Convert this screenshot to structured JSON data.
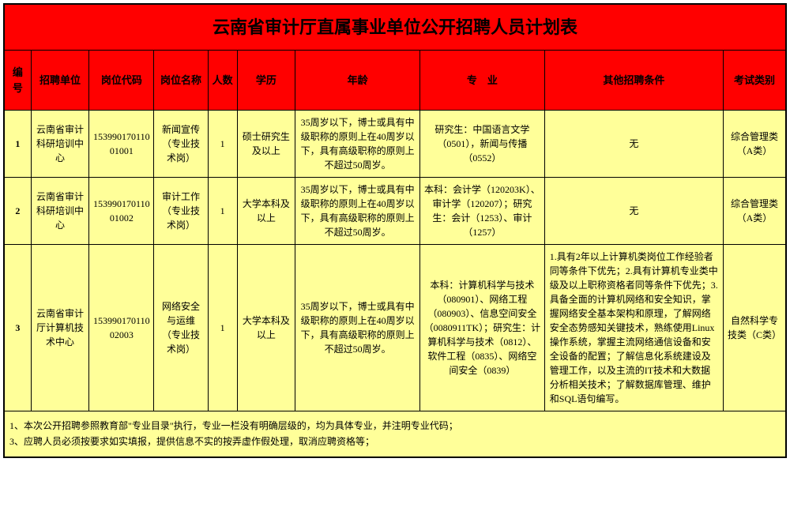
{
  "title": "云南省审计厅直属事业单位公开招聘人员计划表",
  "headers": {
    "seq": "编号",
    "unit": "招聘单位",
    "code": "岗位代码",
    "position": "岗位名称",
    "count": "人数",
    "edu": "学历",
    "age": "年龄",
    "major": "专　业",
    "other": "其他招聘条件",
    "exam": "考试类别"
  },
  "rows": [
    {
      "seq": "1",
      "unit": "云南省审计科研培训中心",
      "code": "15399017011001001",
      "position": "新闻宣传（专业技术岗）",
      "count": "1",
      "edu": "硕士研究生及以上",
      "age": "35周岁以下，博士或具有中级职称的原则上在40周岁以下，具有高级职称的原则上不超过50周岁。",
      "major": "研究生：中国语言文学（0501），新闻与传播（0552）",
      "other": "无",
      "exam": "综合管理类（A类）"
    },
    {
      "seq": "2",
      "unit": "云南省审计科研培训中心",
      "code": "15399017011001002",
      "position": "审计工作（专业技术岗）",
      "count": "1",
      "edu": "大学本科及以上",
      "age": "35周岁以下，博士或具有中级职称的原则上在40周岁以下，具有高级职称的原则上不超过50周岁。",
      "major": "本科：会计学（120203K）、审计学（120207）；研究生：会计（1253）、审计（1257）",
      "other": "无",
      "exam": "综合管理类（A类）"
    },
    {
      "seq": "3",
      "unit": "云南省审计厅计算机技术中心",
      "code": "15399017011002003",
      "position": "网络安全与运维（专业技术岗）",
      "count": "1",
      "edu": "大学本科及以上",
      "age": "35周岁以下，博士或具有中级职称的原则上在40周岁以下，具有高级职称的原则上不超过50周岁。",
      "major": "本科：计算机科学与技术（080901）、网络工程（080903）、信息空间安全（0080911TK）；研究生：计算机科学与技术（0812）、软件工程（0835）、网络空间安全（0839）",
      "other": "1.具有2年以上计算机类岗位工作经验者同等条件下优先；2.具有计算机专业类中级及以上职称资格者同等条件下优先；3.具备全面的计算机网络和安全知识，掌握网络安全基本架构和原理，了解网络安全态势感知关键技术，熟练使用Linux操作系统，掌握主流网络通信设备和安全设备的配置；了解信息化系统建设及管理工作，以及主流的IT技术和大数据分析相关技术；了解数据库管理、维护和SQL语句编写。",
      "exam": "自然科学专技类（C类）"
    }
  ],
  "footer": {
    "line1": "1、本次公开招聘参照教育部\"专业目录\"执行，专业一栏没有明确层级的，均为具体专业，并注明专业代码；",
    "line2": "3、应聘人员必须按要求如实填报，提供信息不实的按弄虚作假处理，取消应聘资格等；"
  },
  "colors": {
    "header_bg": "#ff0000",
    "data_bg": "#ffff99",
    "border": "#000000",
    "text": "#000000"
  }
}
